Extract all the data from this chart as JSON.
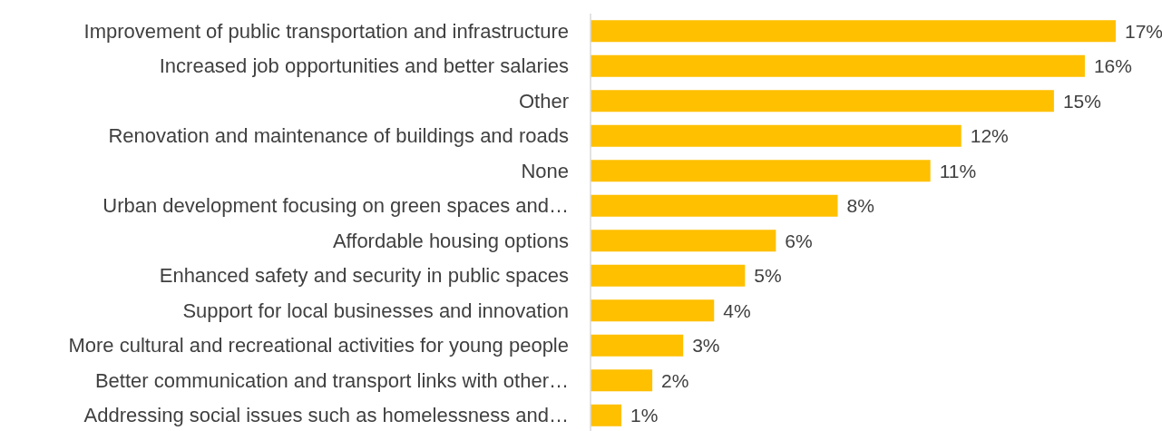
{
  "chart_data": {
    "type": "bar",
    "orientation": "horizontal",
    "categories": [
      "Improvement of public transportation and infrastructure",
      "Increased job opportunities and better salaries",
      "Other",
      "Renovation and maintenance of buildings and roads",
      "None",
      "Urban development focusing on green spaces and…",
      "Affordable housing options",
      "Enhanced safety and security in public spaces",
      "Support for local businesses and innovation",
      "More cultural and recreational activities for young people",
      "Better communication and transport links with other…",
      "Addressing social issues such as homelessness and…"
    ],
    "values": [
      17,
      16,
      15,
      12,
      11,
      8,
      6,
      5,
      4,
      3,
      2,
      1
    ],
    "value_labels": [
      "17%",
      "16%",
      "15%",
      "12%",
      "11%",
      "8%",
      "6%",
      "5%",
      "4%",
      "3%",
      "2%",
      "1%"
    ],
    "color": "#ffc000"
  }
}
